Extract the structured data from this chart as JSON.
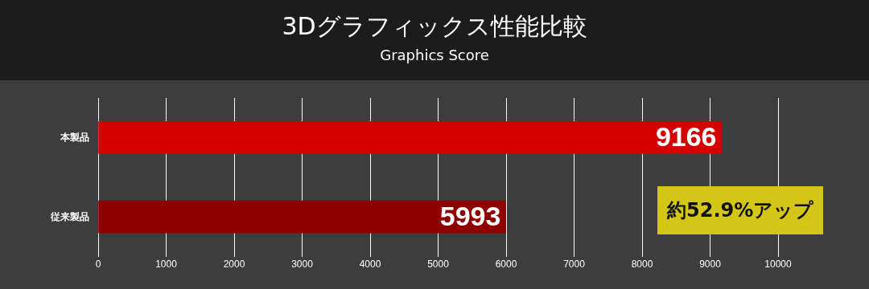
{
  "chart_data": {
    "type": "bar",
    "orientation": "horizontal",
    "title": "3Dグラフィックス性能比較",
    "subtitle": "Graphics Score",
    "categories": [
      "本製品",
      "従来製品"
    ],
    "values": [
      9166,
      5993
    ],
    "colors": [
      "#d40000",
      "#8e0000"
    ],
    "xlim": [
      0,
      10000
    ],
    "xticks": [
      0,
      1000,
      2000,
      3000,
      4000,
      5000,
      6000,
      7000,
      8000,
      9000,
      10000
    ],
    "grid": "x",
    "legend": false,
    "data_labels": true,
    "annotations": [
      "約52.9%アップ"
    ]
  }
}
